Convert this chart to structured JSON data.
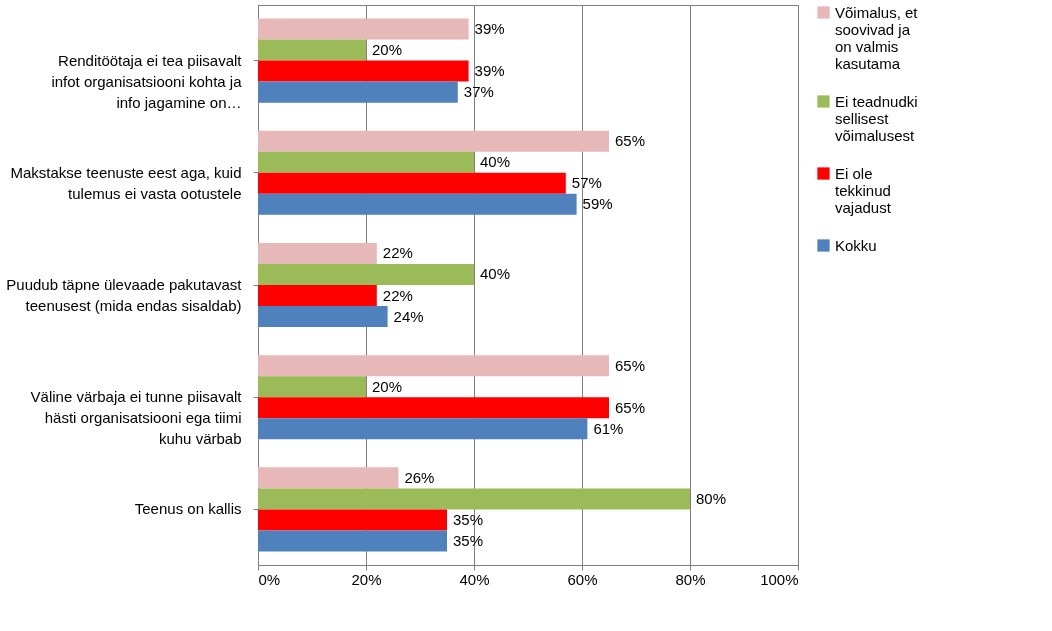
{
  "chart_data": {
    "type": "bar",
    "orientation": "horizontal",
    "categories": [
      "Renditöötaja ei tea piisavalt infot organisatsiooni kohta ja info jagamine on…",
      "Makstakse teenuste eest aga, kuid tulemus ei vasta ootustele",
      "Puudub täpne ülevaade pakutavast teenusest (mida endas sisaldab)",
      "Väline värbaja ei tunne piisavalt hästi organisatsiooni ega tiimi kuhu värbab",
      "Teenus on kallis"
    ],
    "series": [
      {
        "name": "Võimalus, et soovivad ja on valmis kasutama",
        "color": "#e6b9b8",
        "values": [
          39,
          65,
          22,
          65,
          26
        ],
        "value_labels": [
          "39%",
          "65%",
          "22%",
          "65%",
          "26%"
        ]
      },
      {
        "name": "Ei teadnudki sellisest võimalusest",
        "color": "#9bbb59",
        "values": [
          20,
          40,
          40,
          20,
          80
        ],
        "value_labels": [
          "20%",
          "40%",
          "40%",
          "20%",
          "80%"
        ]
      },
      {
        "name": "Ei ole tekkinud vajadust",
        "color": "#ff0000",
        "values": [
          39,
          57,
          22,
          65,
          35
        ],
        "value_labels": [
          "39%",
          "57%",
          "22%",
          "65%",
          "35%"
        ]
      },
      {
        "name": "Kokku",
        "color": "#4f81bd",
        "values": [
          37,
          59,
          24,
          61,
          35
        ],
        "value_labels": [
          "37%",
          "59%",
          "24%",
          "61%",
          "35%"
        ]
      }
    ],
    "xlim": [
      0,
      100
    ],
    "xticks": [
      {
        "value": 0,
        "label": "0%"
      },
      {
        "value": 20,
        "label": "20%"
      },
      {
        "value": 40,
        "label": "40%"
      },
      {
        "value": 60,
        "label": "60%"
      },
      {
        "value": 80,
        "label": "80%"
      },
      {
        "value": 100,
        "label": "100%"
      }
    ],
    "grid": "x",
    "legend": "right"
  }
}
